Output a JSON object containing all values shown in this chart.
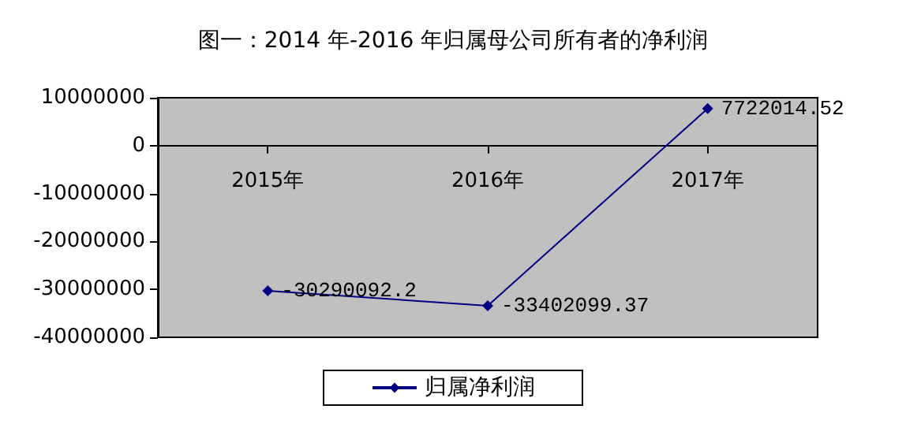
{
  "chart_data": {
    "type": "line",
    "title": "图一：2014 年-2016 年归属母公司所有者的净利润",
    "categories": [
      "2015年",
      "2016年",
      "2017年"
    ],
    "series": [
      {
        "name": "归属净利润",
        "color": "#000080",
        "values": [
          -30290092.2,
          -33402099.37,
          7722014.52
        ]
      }
    ],
    "ylim": [
      -40000000,
      10000000
    ],
    "yticks": [
      -40000000,
      -30000000,
      -20000000,
      -10000000,
      0,
      10000000
    ],
    "data_labels": true,
    "marker": "diamond",
    "grid": false,
    "legend": "bottom"
  }
}
